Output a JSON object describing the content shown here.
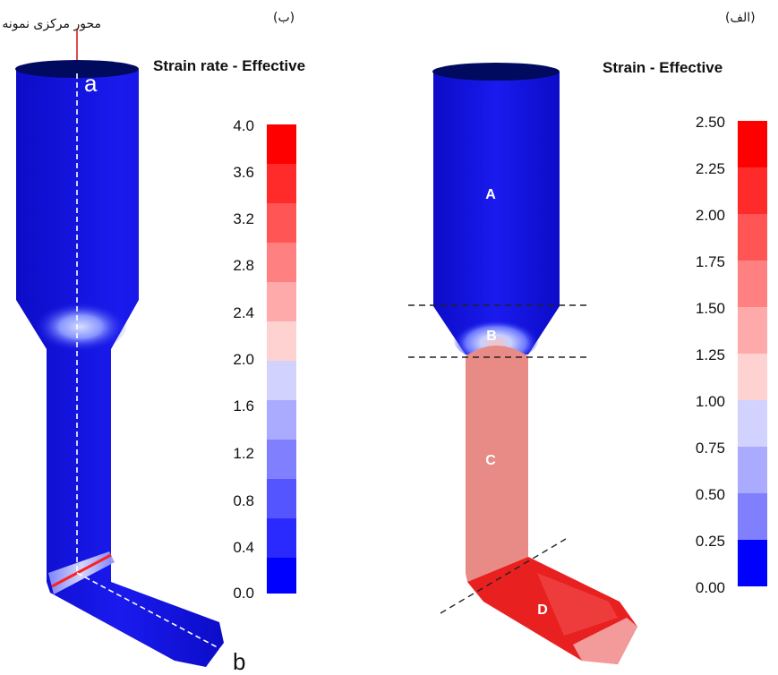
{
  "left_panel": {
    "label": "(ب)",
    "title": "Strain rate - Effective",
    "axis_note": "محور مرکزی نمونه",
    "point_a": "a",
    "point_b": "b",
    "legend_ticks": [
      "4.0",
      "3.6",
      "3.2",
      "2.8",
      "2.4",
      "2.0",
      "1.6",
      "1.2",
      "0.8",
      "0.4",
      "0.0"
    ]
  },
  "right_panel": {
    "label": "(الف)",
    "title": "Strain - Effective",
    "zones": [
      "A",
      "B",
      "C",
      "D"
    ],
    "legend_ticks": [
      "2.50",
      "2.25",
      "2.00",
      "1.75",
      "1.50",
      "1.25",
      "1.00",
      "0.75",
      "0.50",
      "0.25",
      "0.00"
    ]
  },
  "colors": {
    "mesh_blue": "#1616e6",
    "mesh_blue_dark": "#000a5e",
    "strain_salmon": "#e88a85",
    "strain_red": "#e82020",
    "legend_top_to_bottom": [
      "#ff0000",
      "#ff2a2a",
      "#ff5555",
      "#ff8080",
      "#ffaaaa",
      "#ffd2d2",
      "#d2d2ff",
      "#aaaaff",
      "#8080ff",
      "#5555ff",
      "#2a2aff",
      "#0000ff"
    ],
    "arrow_red": "#d01010"
  }
}
